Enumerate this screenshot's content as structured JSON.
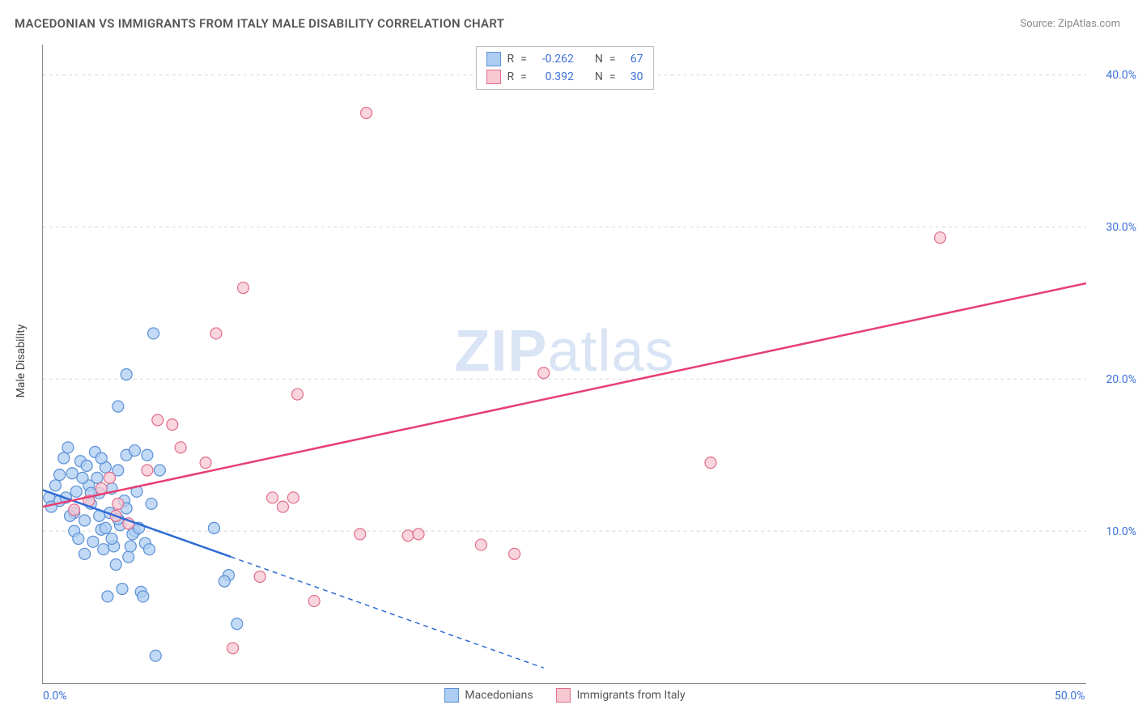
{
  "title": "MACEDONIAN VS IMMIGRANTS FROM ITALY MALE DISABILITY CORRELATION CHART",
  "source": "Source: ZipAtlas.com",
  "ylabel": "Male Disability",
  "watermark": {
    "part1": "ZIP",
    "part2": "atlas"
  },
  "chart": {
    "type": "scatter-with-trend",
    "background_color": "#ffffff",
    "grid_color": "#d8d8d8",
    "axis_color": "#888888",
    "tick_label_color": "#3b6fd6",
    "xlim": [
      0,
      50
    ],
    "ylim": [
      0,
      42
    ],
    "xticks": [
      {
        "value": 0,
        "label": "0.0%"
      },
      {
        "value": 50,
        "label": "50.0%"
      }
    ],
    "yticks": [
      {
        "value": 10,
        "label": "10.0%"
      },
      {
        "value": 20,
        "label": "20.0%"
      },
      {
        "value": 30,
        "label": "30.0%"
      },
      {
        "value": 40,
        "label": "40.0%"
      }
    ],
    "series": [
      {
        "name": "Macedonians",
        "marker_fill": "#aecdf2",
        "marker_stroke": "#5b8fd6",
        "marker_radius": 7,
        "marker_opacity": 0.75,
        "line_color": "#2e6bd6",
        "line_width": 2.5,
        "R": "-0.262",
        "N": "67",
        "trend": {
          "x1": 0,
          "y1": 12.7,
          "x2": 24,
          "y2": 1.0,
          "solid_until_x": 9
        },
        "points": [
          [
            0.3,
            12.2
          ],
          [
            0.4,
            11.6
          ],
          [
            0.6,
            13.0
          ],
          [
            0.8,
            12.0
          ],
          [
            1.0,
            14.8
          ],
          [
            1.2,
            15.5
          ],
          [
            1.4,
            13.8
          ],
          [
            1.5,
            11.2
          ],
          [
            1.5,
            10.0
          ],
          [
            1.7,
            9.5
          ],
          [
            1.8,
            14.6
          ],
          [
            2.0,
            10.7
          ],
          [
            2.0,
            8.5
          ],
          [
            2.2,
            13.0
          ],
          [
            2.3,
            11.8
          ],
          [
            2.4,
            9.3
          ],
          [
            2.5,
            15.2
          ],
          [
            2.6,
            13.5
          ],
          [
            2.7,
            12.5
          ],
          [
            2.8,
            10.1
          ],
          [
            2.9,
            8.8
          ],
          [
            3.0,
            14.2
          ],
          [
            3.2,
            11.2
          ],
          [
            3.3,
            12.8
          ],
          [
            3.4,
            9.0
          ],
          [
            3.5,
            7.8
          ],
          [
            3.6,
            14.0
          ],
          [
            3.7,
            10.4
          ],
          [
            3.9,
            12.0
          ],
          [
            4.0,
            15.0
          ],
          [
            4.1,
            8.3
          ],
          [
            4.2,
            9.0
          ],
          [
            4.4,
            10.0
          ],
          [
            4.5,
            12.6
          ],
          [
            4.7,
            6.0
          ],
          [
            4.8,
            5.7
          ],
          [
            5.0,
            15.0
          ],
          [
            5.2,
            11.8
          ],
          [
            5.4,
            1.8
          ],
          [
            5.6,
            14.0
          ],
          [
            3.6,
            18.2
          ],
          [
            4.0,
            20.3
          ],
          [
            5.3,
            23.0
          ],
          [
            0.8,
            13.7
          ],
          [
            1.1,
            12.2
          ],
          [
            1.3,
            11.0
          ],
          [
            1.6,
            12.6
          ],
          [
            1.9,
            13.5
          ],
          [
            2.1,
            14.3
          ],
          [
            2.3,
            12.5
          ],
          [
            2.7,
            11.0
          ],
          [
            3.0,
            10.2
          ],
          [
            3.3,
            9.5
          ],
          [
            3.6,
            10.8
          ],
          [
            4.0,
            11.5
          ],
          [
            4.3,
            9.8
          ],
          [
            4.6,
            10.2
          ],
          [
            3.8,
            6.2
          ],
          [
            3.1,
            5.7
          ],
          [
            4.4,
            15.3
          ],
          [
            2.8,
            14.8
          ],
          [
            4.9,
            9.2
          ],
          [
            5.1,
            8.8
          ],
          [
            8.9,
            7.1
          ],
          [
            8.7,
            6.7
          ],
          [
            9.3,
            3.9
          ],
          [
            8.2,
            10.2
          ]
        ]
      },
      {
        "name": "Immigrants from Italy",
        "marker_fill": "#f7c7d2",
        "marker_stroke": "#e06d8c",
        "marker_radius": 7,
        "marker_opacity": 0.75,
        "line_color": "#e83e72",
        "line_width": 2.5,
        "R": "0.392",
        "N": "30",
        "trend": {
          "x1": 0,
          "y1": 11.6,
          "x2": 50,
          "y2": 26.3,
          "solid_until_x": 50
        },
        "points": [
          [
            2.2,
            12.0
          ],
          [
            3.2,
            13.5
          ],
          [
            3.6,
            11.8
          ],
          [
            4.1,
            10.5
          ],
          [
            5.0,
            14.0
          ],
          [
            5.5,
            17.3
          ],
          [
            6.2,
            17.0
          ],
          [
            6.6,
            15.5
          ],
          [
            7.8,
            14.5
          ],
          [
            8.3,
            23.0
          ],
          [
            9.1,
            2.3
          ],
          [
            9.6,
            26.0
          ],
          [
            10.4,
            7.0
          ],
          [
            11.0,
            12.2
          ],
          [
            11.5,
            11.6
          ],
          [
            12.0,
            12.2
          ],
          [
            12.2,
            19.0
          ],
          [
            13.0,
            5.4
          ],
          [
            15.2,
            9.8
          ],
          [
            15.5,
            37.5
          ],
          [
            17.5,
            9.7
          ],
          [
            18.0,
            9.8
          ],
          [
            21.0,
            9.1
          ],
          [
            22.6,
            8.5
          ],
          [
            24.0,
            20.4
          ],
          [
            32.0,
            14.5
          ],
          [
            43.0,
            29.3
          ],
          [
            1.5,
            11.4
          ],
          [
            2.8,
            12.8
          ],
          [
            3.5,
            11.0
          ]
        ]
      }
    ]
  },
  "legend_top": {
    "R_label": "R",
    "eq": "=",
    "N_label": "N"
  },
  "legend_bottom": [
    {
      "label": "Macedonians",
      "fill": "#aecdf2",
      "stroke": "#5b8fd6"
    },
    {
      "label": "Immigrants from Italy",
      "fill": "#f7c7d2",
      "stroke": "#e06d8c"
    }
  ]
}
